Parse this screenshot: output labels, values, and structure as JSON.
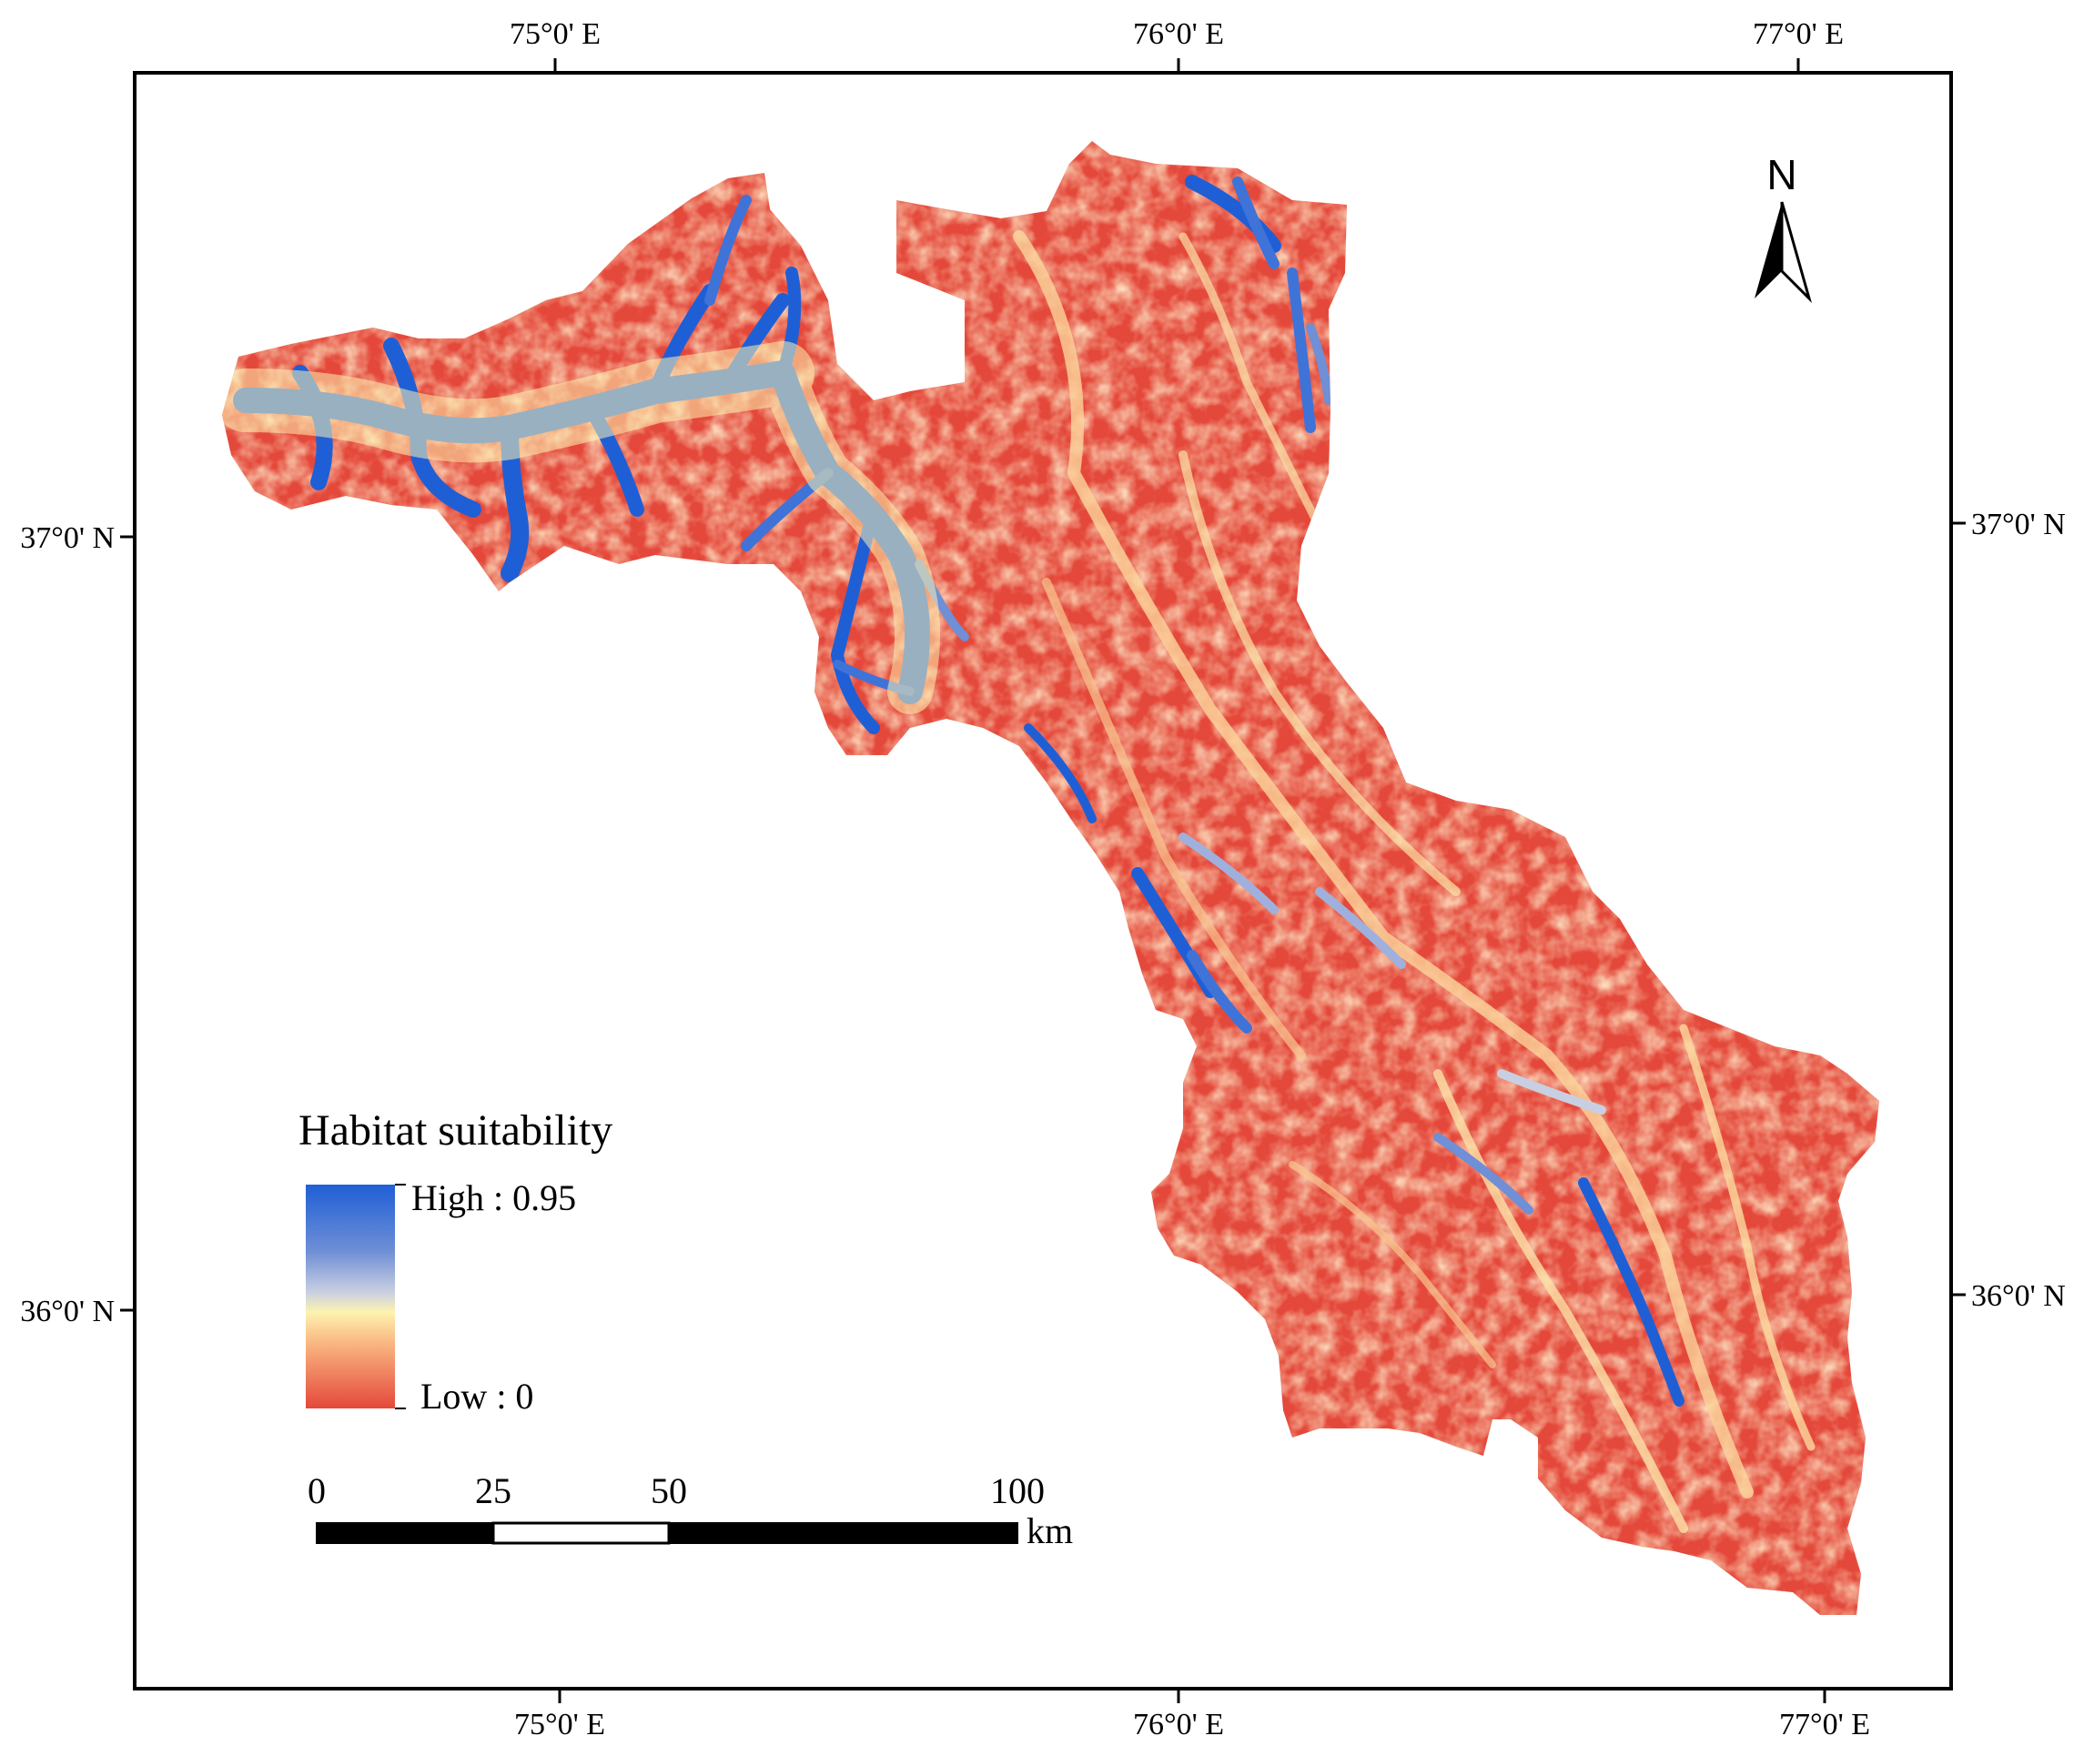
{
  "map": {
    "lon_top": [
      "75°0' E",
      "76°0' E",
      "77°0' E"
    ],
    "lon_bottom": [
      "75°0' E",
      "76°0' E",
      "77°0' E"
    ],
    "lat_left": [
      "37°0' N",
      "36°0' N"
    ],
    "lat_right": [
      "37°0' N",
      "36°0' N"
    ]
  },
  "legend": {
    "title": "Habitat suitability",
    "high_label": "High : 0.95",
    "low_label": "Low : 0",
    "colors": {
      "high": "#1f5fd6",
      "mid_high": "#c9cfe2",
      "mid": "#fdf3b0",
      "mid_low": "#f7a071",
      "low": "#e4483a"
    }
  },
  "scalebar": {
    "ticks": [
      "0",
      "25",
      "50",
      "100"
    ],
    "unit": "km"
  },
  "north_arrow": {
    "label": "N",
    "icon": "north-arrow-icon"
  }
}
